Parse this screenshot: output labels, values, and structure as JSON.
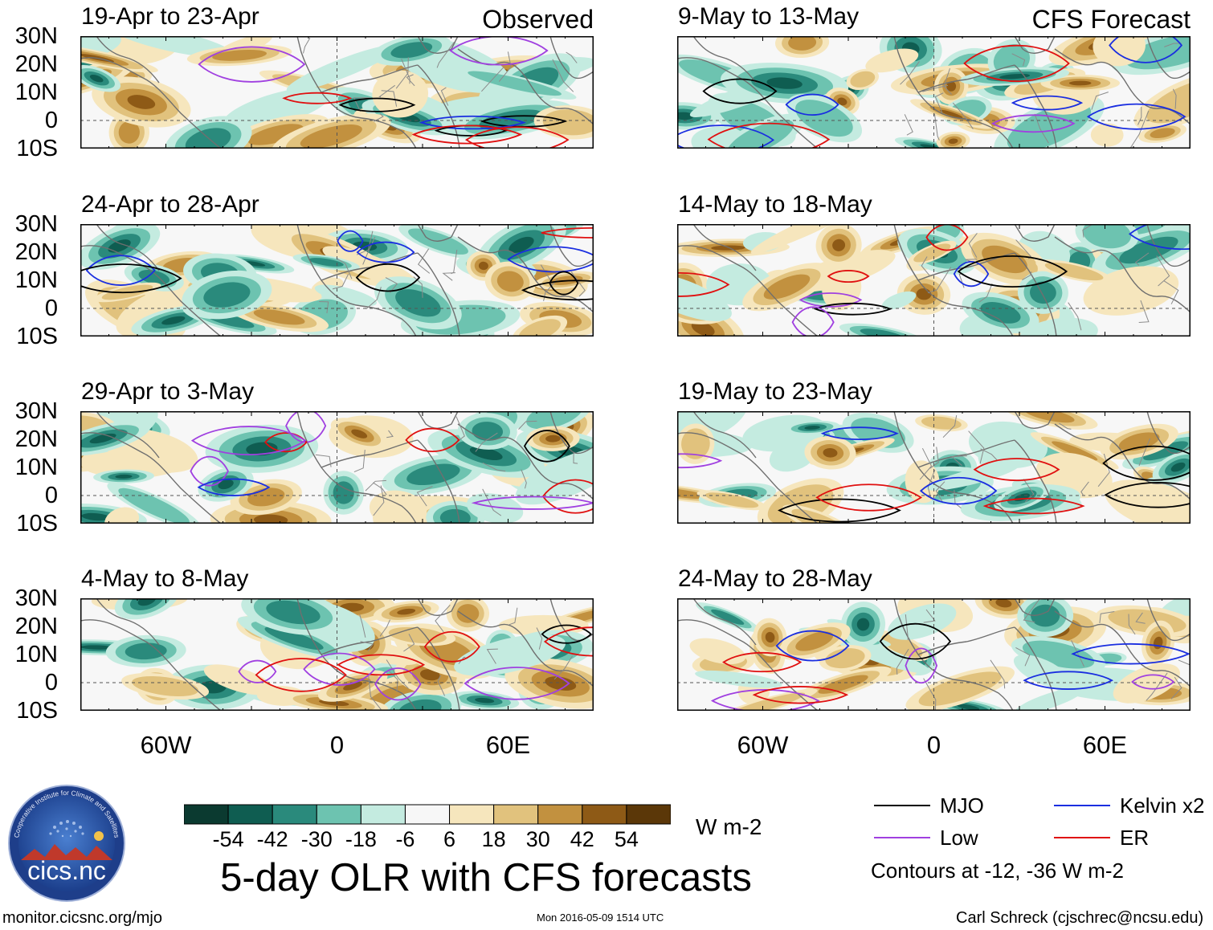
{
  "chart_data": [
    {
      "type": "heatmap",
      "id": "p1",
      "title": "19-Apr to 23-Apr",
      "label": "Observed",
      "lon_range": [
        -90,
        90
      ],
      "lat_range": [
        -10,
        30
      ],
      "seed": 11
    },
    {
      "type": "heatmap",
      "id": "p2",
      "title": "24-Apr to 28-Apr",
      "label": "",
      "lon_range": [
        -90,
        90
      ],
      "lat_range": [
        -10,
        30
      ],
      "seed": 23
    },
    {
      "type": "heatmap",
      "id": "p3",
      "title": "29-Apr to 3-May",
      "label": "",
      "lon_range": [
        -90,
        90
      ],
      "lat_range": [
        -10,
        30
      ],
      "seed": 37
    },
    {
      "type": "heatmap",
      "id": "p4",
      "title": "4-May to 8-May",
      "label": "",
      "lon_range": [
        -90,
        90
      ],
      "lat_range": [
        -10,
        30
      ],
      "seed": 41
    },
    {
      "type": "heatmap",
      "id": "p5",
      "title": "9-May to 13-May",
      "label": "CFS Forecast",
      "lon_range": [
        -90,
        90
      ],
      "lat_range": [
        -10,
        30
      ],
      "seed": 53
    },
    {
      "type": "heatmap",
      "id": "p6",
      "title": "14-May to 18-May",
      "label": "",
      "lon_range": [
        -90,
        90
      ],
      "lat_range": [
        -10,
        30
      ],
      "seed": 67
    },
    {
      "type": "heatmap",
      "id": "p7",
      "title": "19-May to 23-May",
      "label": "",
      "lon_range": [
        -90,
        90
      ],
      "lat_range": [
        -10,
        30
      ],
      "seed": 71
    },
    {
      "type": "heatmap",
      "id": "p8",
      "title": "24-May to 28-May",
      "label": "",
      "lon_range": [
        -90,
        90
      ],
      "lat_range": [
        -10,
        30
      ],
      "seed": 83
    }
  ],
  "axes": {
    "lat_ticks": [
      "30N",
      "20N",
      "10N",
      "0",
      "10S"
    ],
    "lat_values": [
      30,
      20,
      10,
      0,
      -10
    ],
    "lon_ticks": [
      "60W",
      "0",
      "60E"
    ],
    "lon_values": [
      -60,
      0,
      60
    ]
  },
  "colorbar": {
    "labels": [
      "-54",
      "-42",
      "-30",
      "-18",
      "-6",
      "6",
      "18",
      "30",
      "42",
      "54"
    ],
    "colors": [
      "#0b3a30",
      "#0f5d51",
      "#2a8a7c",
      "#6dc3b0",
      "#c4ebe0",
      "#f7f7f7",
      "#f6e6bd",
      "#e1c27d",
      "#c2913f",
      "#8e5a16",
      "#5b3708"
    ],
    "units": "W m-2"
  },
  "legend": {
    "items": [
      {
        "label": "MJO",
        "color": "#000000"
      },
      {
        "label": "Kelvin x2",
        "color": "#1a2ee0"
      },
      {
        "label": "Low",
        "color": "#a040e0"
      },
      {
        "label": "ER",
        "color": "#e01010"
      }
    ],
    "note": "Contours at -12, -36 W m-2"
  },
  "title": "5-day OLR with CFS forecasts",
  "footer": {
    "site": "monitor.cicsnc.org/mjo",
    "timestamp": "Mon 2016-05-09 1514 UTC",
    "author": "Carl Schreck (cjschrec@ncsu.edu)"
  },
  "logo": {
    "text": "cics.nc",
    "ring_text": "Cooperative Institute for Climate and Satellites"
  }
}
